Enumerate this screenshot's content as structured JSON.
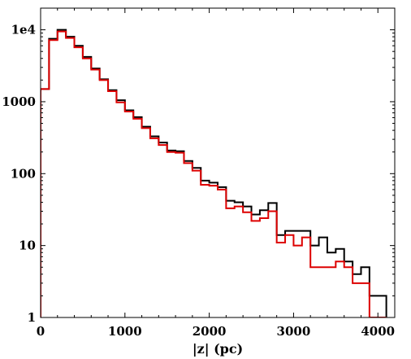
{
  "chart_data": {
    "type": "histogram-step",
    "xlabel": "|z| (pc)",
    "ylabel": "",
    "title": "",
    "xlim": [
      0,
      4200
    ],
    "ylim": [
      1,
      20000
    ],
    "yscale": "log",
    "x_ticks": [
      0,
      1000,
      2000,
      3000,
      4000
    ],
    "x_tick_labels": [
      "0",
      "1000",
      "2000",
      "3000",
      "4000"
    ],
    "y_ticks": [
      1,
      10,
      100,
      1000,
      10000
    ],
    "y_tick_labels": [
      "1",
      "10",
      "100",
      "1000",
      "1e4"
    ],
    "grid": false,
    "bin_width": 100,
    "bin_starts": [
      0,
      100,
      200,
      300,
      400,
      500,
      600,
      700,
      800,
      900,
      1000,
      1100,
      1200,
      1300,
      1400,
      1500,
      1600,
      1700,
      1800,
      1900,
      2000,
      2100,
      2200,
      2300,
      2400,
      2500,
      2600,
      2700,
      2800,
      2900,
      3000,
      3100,
      3200,
      3300,
      3400,
      3500,
      3600,
      3700,
      3800,
      3900,
      4000
    ],
    "series": [
      {
        "color": "#000000",
        "values": [
          1500,
          7500,
          10000,
          8000,
          6000,
          4200,
          2900,
          2050,
          1450,
          1050,
          760,
          610,
          450,
          330,
          270,
          210,
          205,
          150,
          120,
          80,
          75,
          65,
          42,
          40,
          35,
          27,
          31,
          39,
          14,
          16,
          16,
          16,
          10,
          13,
          8,
          9,
          6,
          4,
          5,
          2,
          2
        ]
      },
      {
        "color": "#dd0000",
        "values": [
          1500,
          7200,
          9500,
          7700,
          5700,
          4000,
          2800,
          2000,
          1400,
          980,
          730,
          580,
          430,
          310,
          250,
          200,
          195,
          140,
          110,
          70,
          68,
          60,
          33,
          35,
          29,
          22,
          24,
          30,
          11,
          14,
          10,
          13,
          5,
          5,
          5,
          6,
          5,
          3,
          3,
          1,
          1
        ]
      }
    ]
  }
}
